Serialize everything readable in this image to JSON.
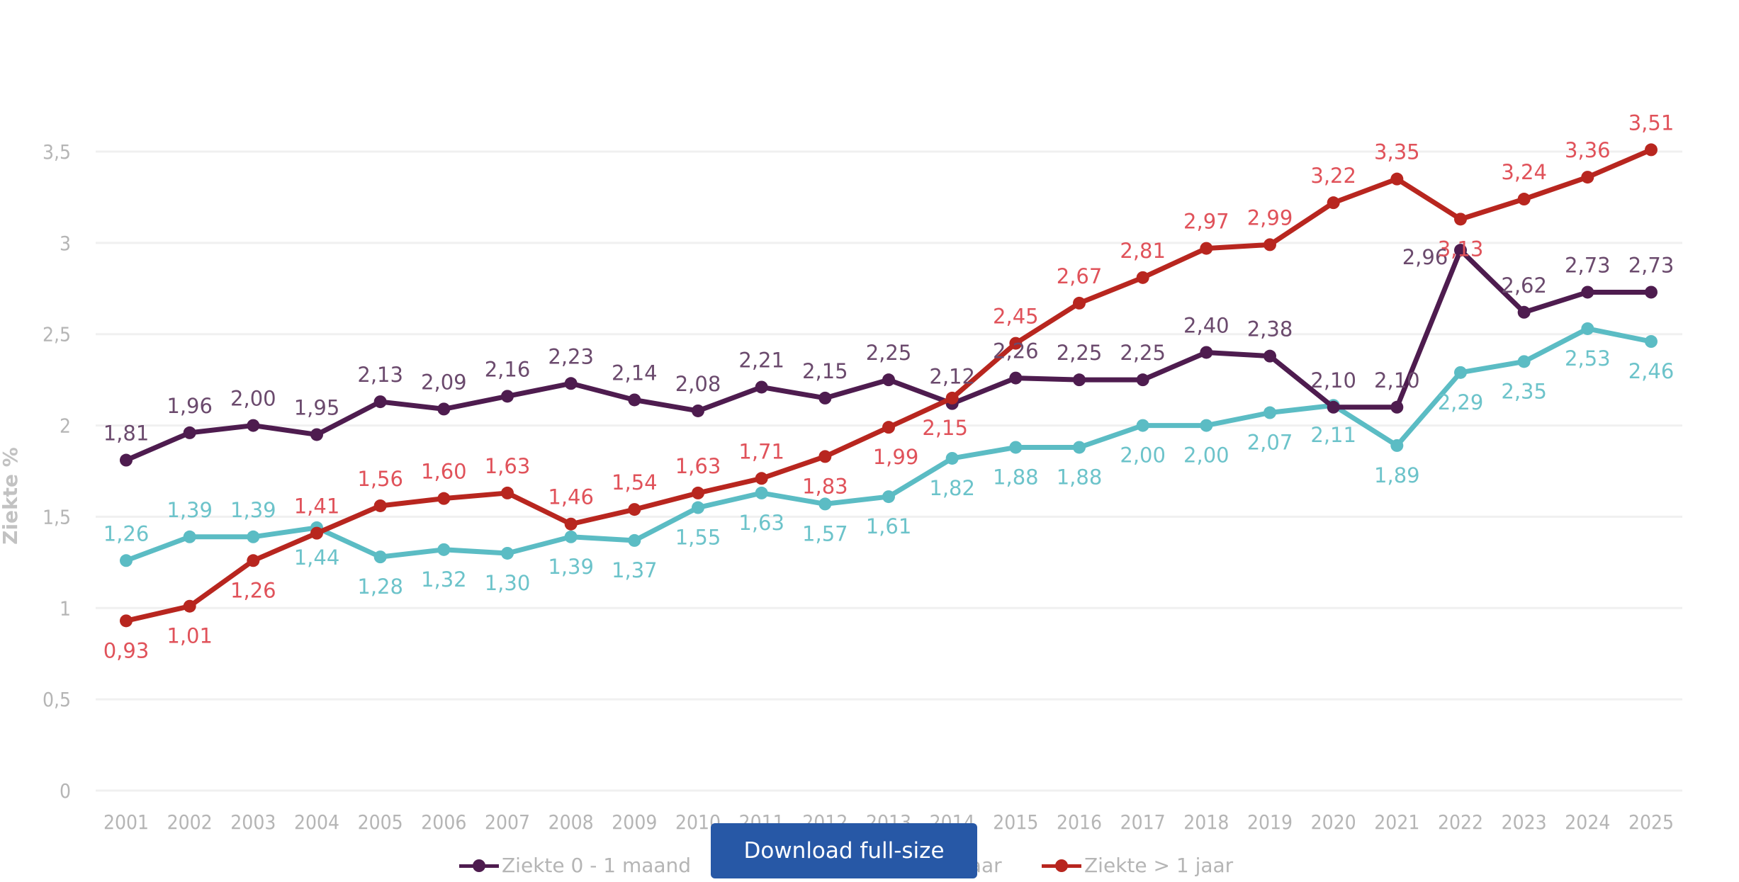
{
  "chart_data": {
    "type": "line",
    "title": "",
    "xlabel": "",
    "ylabel": "Ziekte %",
    "ylim": [
      0,
      3.5
    ],
    "yticks": [
      "0",
      "0,5",
      "1",
      "1,5",
      "2",
      "2,5",
      "3",
      "3,5"
    ],
    "ytick_values": [
      0,
      0.5,
      1,
      1.5,
      2,
      2.5,
      3,
      3.5
    ],
    "grid": true,
    "legend_position": "bottom",
    "x": [
      "2001",
      "2002",
      "2003",
      "2004",
      "2005",
      "2006",
      "2007",
      "2008",
      "2009",
      "2010",
      "2011",
      "2012",
      "2013",
      "2014",
      "2015",
      "2016",
      "2017",
      "2018",
      "2019",
      "2020",
      "2021",
      "2022",
      "2023",
      "2024",
      "2025"
    ],
    "series": [
      {
        "name": "Ziekte 0 - 1 maand",
        "color": "#4e1c4f",
        "label_color": "#6b4a6d",
        "values": [
          1.81,
          1.96,
          2.0,
          1.95,
          2.13,
          2.09,
          2.16,
          2.23,
          2.14,
          2.08,
          2.21,
          2.15,
          2.25,
          2.12,
          2.26,
          2.25,
          2.25,
          2.4,
          2.38,
          2.1,
          2.1,
          2.96,
          2.62,
          2.73,
          2.73
        ],
        "labels": [
          "1,81",
          "1,96",
          "2,00",
          "1,95",
          "2,13",
          "2,09",
          "2,16",
          "2,23",
          "2,14",
          "2,08",
          "2,21",
          "2,15",
          "2,25",
          "2,12",
          "2,26",
          "2,25",
          "2,25",
          "2,40",
          "2,38",
          "2,10",
          "2,10",
          "2,96",
          "2,62",
          "2,73",
          "2,73"
        ]
      },
      {
        "name": "Ziekte 1 maand - 1 jaar",
        "legend_visible_text": "jaar",
        "color": "#5bbcc4",
        "label_color": "#6cc3ca",
        "values": [
          1.26,
          1.39,
          1.39,
          1.44,
          1.28,
          1.32,
          1.3,
          1.39,
          1.37,
          1.55,
          1.63,
          1.57,
          1.61,
          1.82,
          1.88,
          1.88,
          2.0,
          2.0,
          2.07,
          2.11,
          1.89,
          2.29,
          2.35,
          2.53,
          2.46
        ],
        "labels": [
          "1,26",
          "1,39",
          "1,39",
          "1,44",
          "1,28",
          "1,32",
          "1,30",
          "1,39",
          "1,37",
          "1,55",
          "1,63",
          "1,57",
          "1,61",
          "1,82",
          "1,88",
          "1,88",
          "2,00",
          "2,00",
          "2,07",
          "2,11",
          "1,89",
          "2,29",
          "2,35",
          "2,53",
          "2,46"
        ]
      },
      {
        "name": "Ziekte > 1 jaar",
        "color": "#b8261f",
        "label_color": "#e0525a",
        "values": [
          0.93,
          1.01,
          1.26,
          1.41,
          1.56,
          1.6,
          1.63,
          1.46,
          1.54,
          1.63,
          1.71,
          1.83,
          1.99,
          2.15,
          2.45,
          2.67,
          2.81,
          2.97,
          2.99,
          3.22,
          3.35,
          3.13,
          3.24,
          3.36,
          3.51
        ],
        "labels": [
          "0,93",
          "1,01",
          "1,26",
          "1,41",
          "1,56",
          "1,60",
          "1,63",
          "1,46",
          "1,54",
          "1,63",
          "1,71",
          "1,83",
          "1,99",
          "2,15",
          "2,45",
          "2,67",
          "2,81",
          "2,97",
          "2,99",
          "3,22",
          "3,35",
          "3,13",
          "3,24",
          "3,36",
          "3,51"
        ]
      }
    ]
  },
  "legend": {
    "items": [
      {
        "label": "Ziekte 0 - 1 maand",
        "color": "#4e1c4f"
      },
      {
        "label": "jaar",
        "color": "#5bbcc4"
      },
      {
        "label": "Ziekte > 1 jaar",
        "color": "#b8261f"
      }
    ]
  },
  "download_button": {
    "label": "Download full-size",
    "color": "#2758a6"
  }
}
